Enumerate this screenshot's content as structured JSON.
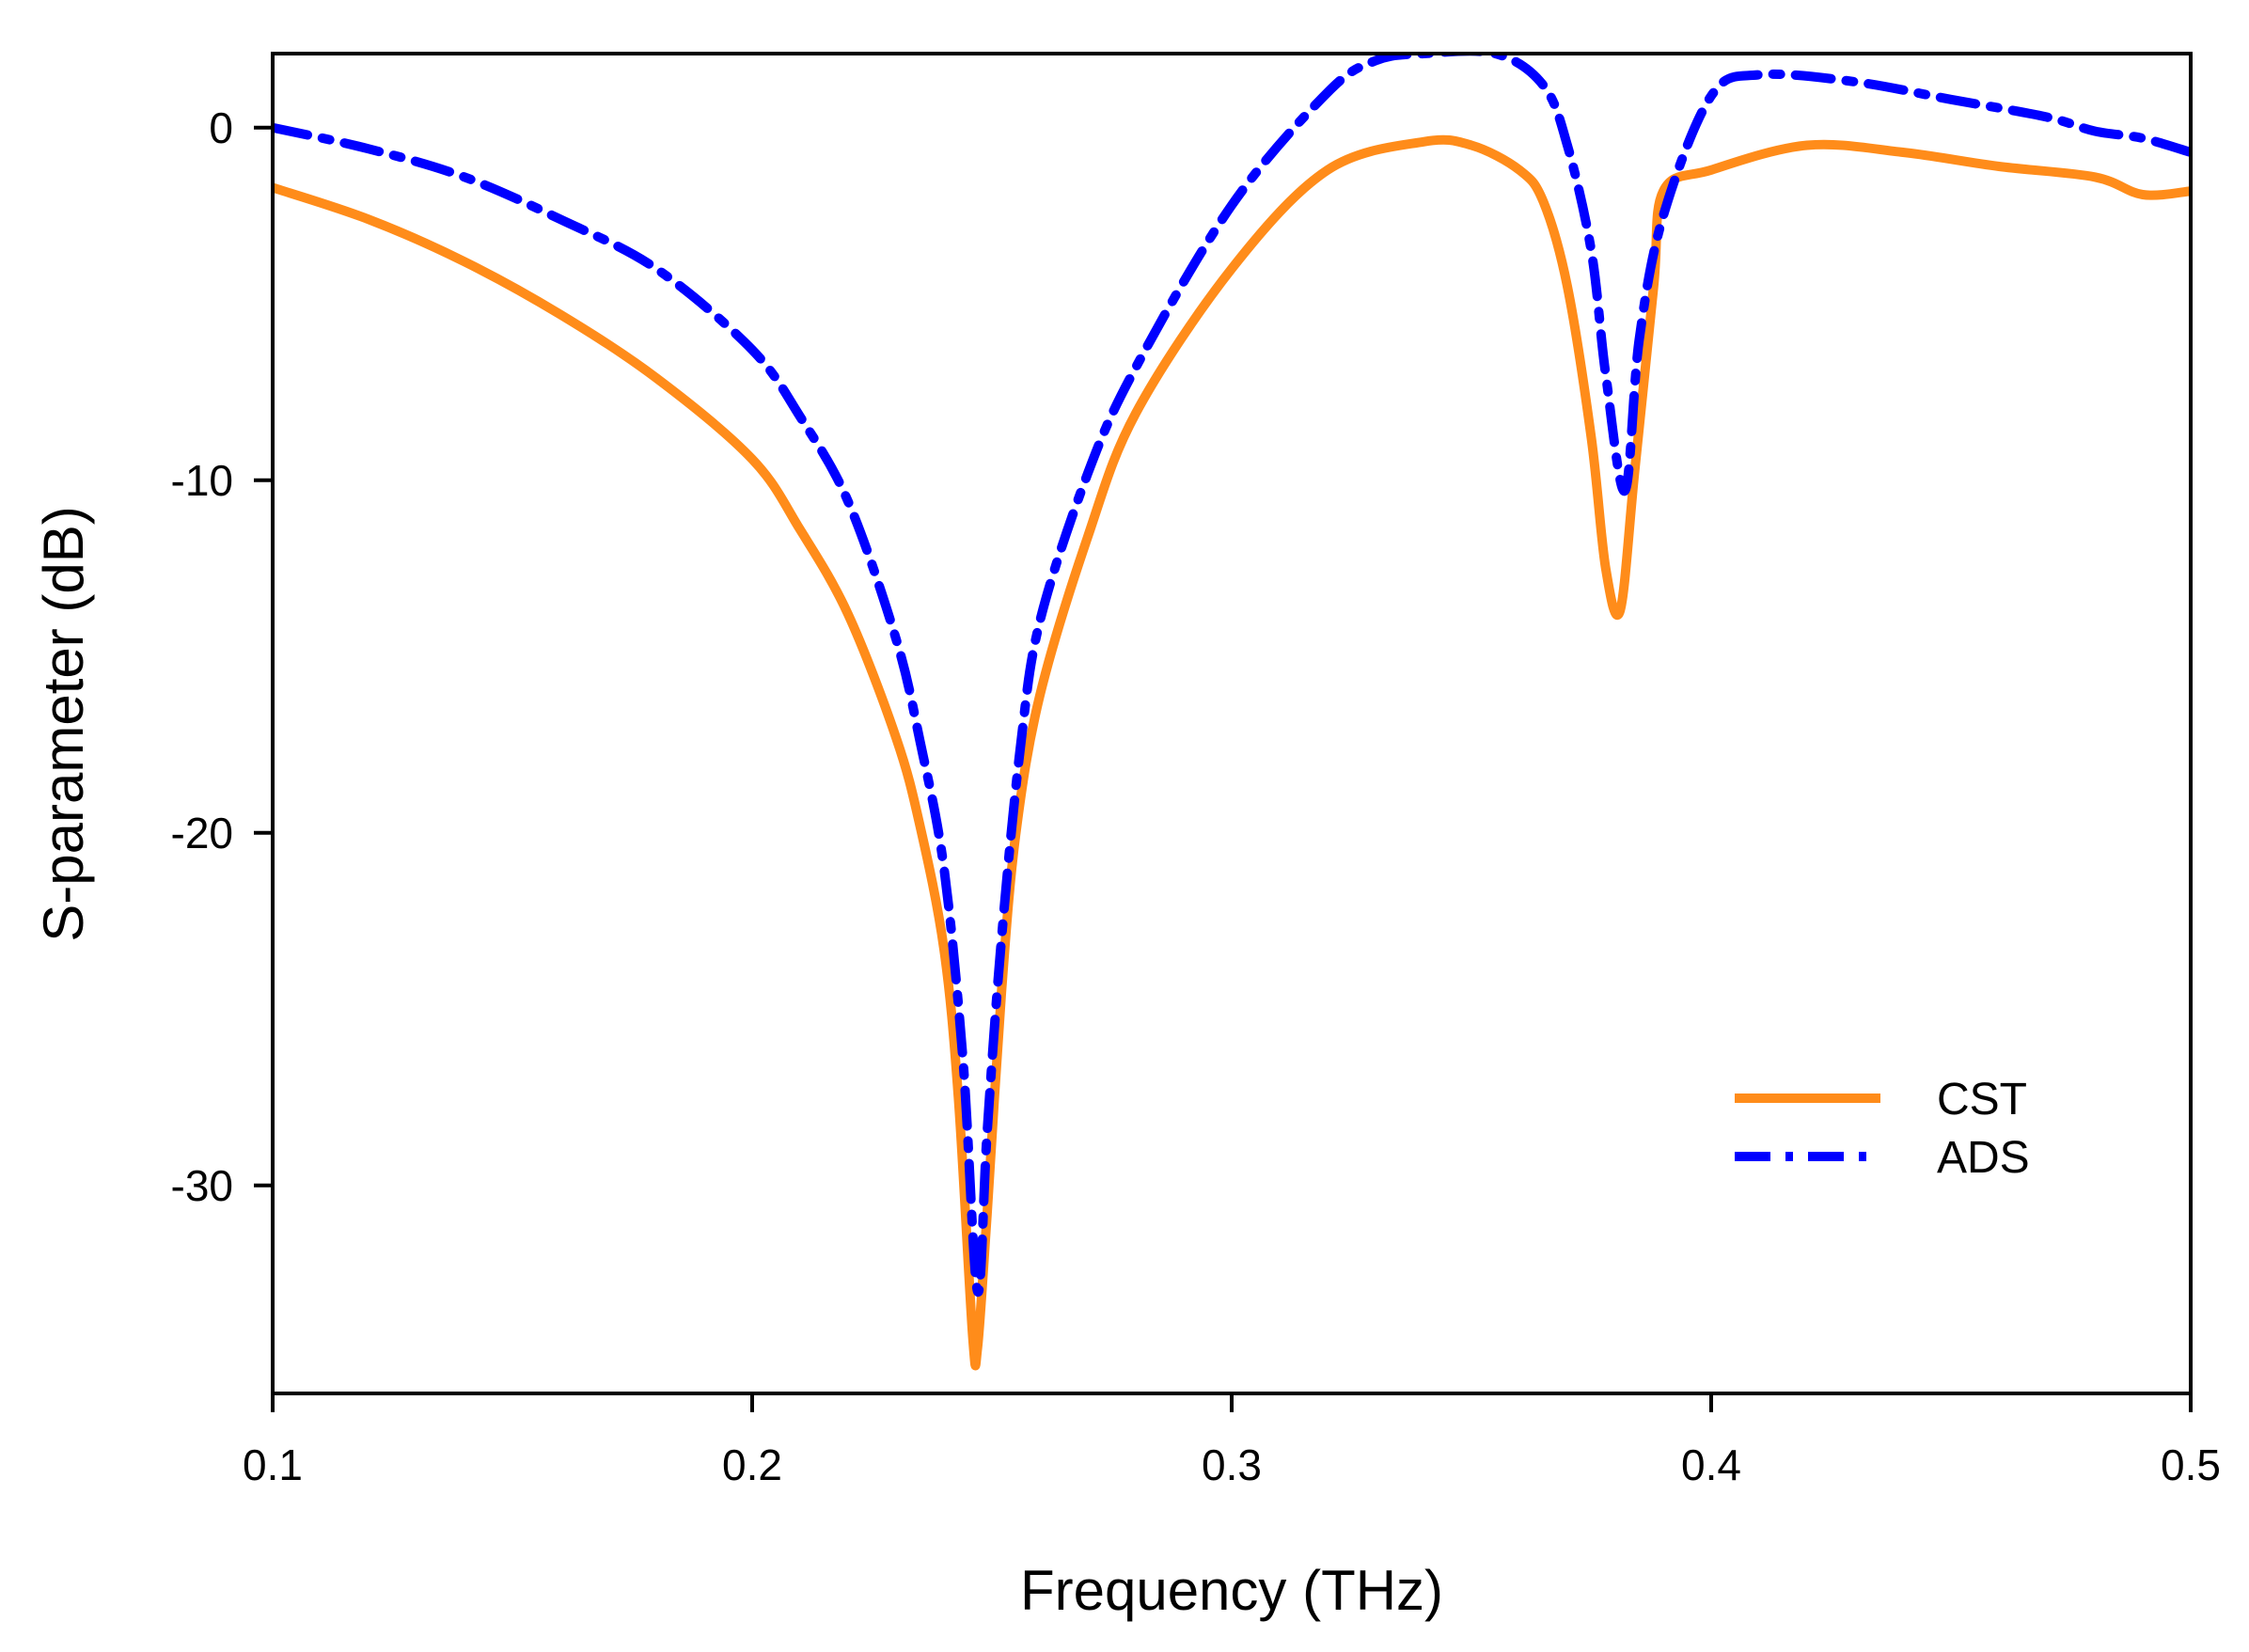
{
  "chart_data": {
    "type": "line",
    "title": "",
    "xlabel": "Frequency (THz)",
    "ylabel": "S-parameter (dB)",
    "xlim": [
      0.1,
      0.5
    ],
    "ylim": [
      -35.9,
      2.1
    ],
    "xticks": [
      0.1,
      0.2,
      0.3,
      0.4,
      0.5
    ],
    "xtick_labels": [
      "0.1",
      "0.2",
      "0.3",
      "0.4",
      "0.5"
    ],
    "yticks": [
      0,
      -10,
      -20,
      -30
    ],
    "ytick_labels": [
      "0",
      "-10",
      "-20",
      "-30"
    ],
    "grid": false,
    "legend_position": "bottom-right",
    "series": [
      {
        "name": "CST",
        "color": "#ff8c1a",
        "style": "solid",
        "x": [
          0.1,
          0.12,
          0.14,
          0.16,
          0.18,
          0.2,
          0.21,
          0.22,
          0.23,
          0.235,
          0.24,
          0.243,
          0.246,
          0.247,
          0.249,
          0.252,
          0.255,
          0.26,
          0.27,
          0.28,
          0.3,
          0.32,
          0.34,
          0.35,
          0.36,
          0.365,
          0.37,
          0.375,
          0.378,
          0.381,
          0.384,
          0.388,
          0.39,
          0.4,
          0.42,
          0.44,
          0.46,
          0.48,
          0.49,
          0.5
        ],
        "y": [
          -1.7,
          -2.6,
          -3.8,
          -5.3,
          -7.1,
          -9.4,
          -11.4,
          -13.8,
          -17.3,
          -19.8,
          -23.3,
          -27.5,
          -34.3,
          -34.6,
          -30.8,
          -24.5,
          -20.0,
          -16.1,
          -11.6,
          -8.1,
          -4.0,
          -1.2,
          -0.4,
          -0.5,
          -1.2,
          -2.1,
          -4.5,
          -8.8,
          -12.5,
          -13.7,
          -9.8,
          -4.5,
          -1.8,
          -1.2,
          -0.5,
          -0.7,
          -1.1,
          -1.4,
          -1.9,
          -1.8
        ]
      },
      {
        "name": "ADS",
        "color": "#0000ff",
        "style": "dashdot",
        "x": [
          0.1,
          0.12,
          0.14,
          0.16,
          0.18,
          0.2,
          0.21,
          0.22,
          0.23,
          0.235,
          0.24,
          0.244,
          0.247,
          0.249,
          0.252,
          0.256,
          0.26,
          0.27,
          0.28,
          0.3,
          0.32,
          0.33,
          0.34,
          0.355,
          0.365,
          0.37,
          0.375,
          0.378,
          0.382,
          0.385,
          0.39,
          0.4,
          0.41,
          0.43,
          0.45,
          0.47,
          0.48,
          0.49,
          0.5
        ],
        "y": [
          0.0,
          -0.6,
          -1.4,
          -2.6,
          -4.0,
          -6.3,
          -8.2,
          -10.6,
          -14.5,
          -17.4,
          -21.0,
          -26.5,
          -33.0,
          -28.5,
          -23.0,
          -17.5,
          -14.0,
          -9.8,
          -6.8,
          -2.2,
          1.0,
          1.9,
          2.1,
          2.1,
          1.2,
          -0.5,
          -3.5,
          -7.0,
          -10.3,
          -6.0,
          -2.5,
          0.9,
          1.5,
          1.3,
          0.8,
          0.3,
          -0.1,
          -0.3,
          -0.7
        ]
      }
    ]
  }
}
